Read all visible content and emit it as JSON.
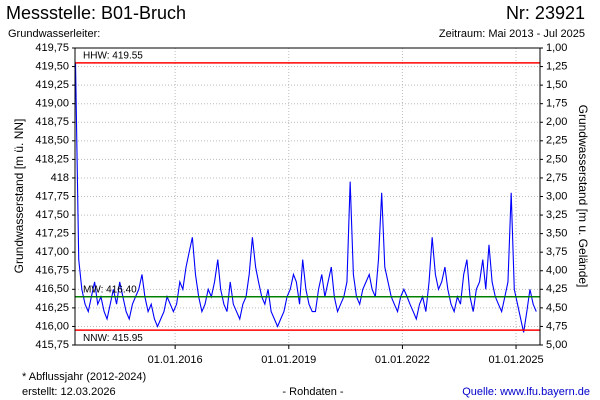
{
  "chart_data": {
    "type": "line",
    "title": "Messstelle: B01-Bruch",
    "number": "Nr: 23921",
    "subtitle_left": "Grundwasserleiter:",
    "subtitle_right": "Zeitraum: Mai 2013 - Jul 2025",
    "ylabel": "Grundwasserstand [m ü. NN]",
    "y2label": "Grundwasserstand [m u. Gelände]",
    "footnote": "* Abflussjahr (2012-2024)",
    "created": "erstellt:  12.03.2026",
    "status": "- Rohdaten -",
    "source": "Quelle: www.lfu.bayern.de",
    "grid": true,
    "xlim": [
      "2013-05-10",
      "2025-08-20"
    ],
    "xticks": [
      {
        "value": "2016-01-01",
        "label": "01.01.2016"
      },
      {
        "value": "2019-01-01",
        "label": "01.01.2019"
      },
      {
        "value": "2022-01-01",
        "label": "01.01.2022"
      },
      {
        "value": "2025-01-01",
        "label": "01.01.2025"
      }
    ],
    "ylim": [
      415.75,
      419.75
    ],
    "yticks": [
      {
        "value": 415.75,
        "label": "415,75"
      },
      {
        "value": 416.0,
        "label": "416,00"
      },
      {
        "value": 416.25,
        "label": "416,25"
      },
      {
        "value": 416.5,
        "label": "416,50"
      },
      {
        "value": 416.75,
        "label": "416,75"
      },
      {
        "value": 417.0,
        "label": "417,00"
      },
      {
        "value": 417.25,
        "label": "417,25"
      },
      {
        "value": 417.5,
        "label": "417,50"
      },
      {
        "value": 417.75,
        "label": "417,75"
      },
      418,
      {
        "value": 418.25,
        "label": "418,25"
      },
      {
        "value": 418.5,
        "label": "418,50"
      },
      {
        "value": 418.75,
        "label": "418,75"
      },
      {
        "value": 419.0,
        "label": "419,00"
      },
      {
        "value": 419.25,
        "label": "419,25"
      },
      {
        "value": 419.5,
        "label": "419,50"
      },
      {
        "value": 419.75,
        "label": "419,75"
      }
    ],
    "y2lim": [
      5,
      1
    ],
    "y2ticks": [
      {
        "value": 1.0,
        "label": "1,00"
      },
      {
        "value": 1.25,
        "label": "1,25"
      },
      {
        "value": 1.5,
        "label": "1,50"
      },
      {
        "value": 1.75,
        "label": "1,75"
      },
      {
        "value": 2.0,
        "label": "2,00"
      },
      {
        "value": 2.25,
        "label": "2,25"
      },
      {
        "value": 2.5,
        "label": "2,50"
      },
      {
        "value": 2.75,
        "label": "2,75"
      },
      {
        "value": 3.0,
        "label": "3,00"
      },
      {
        "value": 3.25,
        "label": "3,25"
      },
      {
        "value": 3.5,
        "label": "3,50"
      },
      {
        "value": 3.75,
        "label": "3,75"
      },
      {
        "value": 4.0,
        "label": "4,00"
      },
      {
        "value": 4.25,
        "label": "4,25"
      },
      {
        "value": 4.5,
        "label": "4,50"
      },
      {
        "value": 4.75,
        "label": "4,75"
      },
      {
        "value": 5.0,
        "label": "5,00"
      }
    ],
    "annotations": [
      {
        "label": "HHW: 419.55",
        "value": 419.55,
        "color": "#ff0000"
      },
      {
        "label": "MW: 416.40",
        "value": 416.4,
        "color": "#008000"
      },
      {
        "label": "NNW: 415.95",
        "value": 415.95,
        "color": "#ff0000"
      }
    ],
    "x": [
      "2013-05-15",
      "2013-06-15",
      "2013-07-15",
      "2013-08-15",
      "2013-09-15",
      "2013-10-15",
      "2013-11-15",
      "2013-12-15",
      "2014-01-15",
      "2014-02-15",
      "2014-03-15",
      "2014-04-15",
      "2014-05-15",
      "2014-06-15",
      "2014-07-15",
      "2014-08-15",
      "2014-09-15",
      "2014-10-15",
      "2014-11-15",
      "2014-12-15",
      "2015-01-15",
      "2015-02-15",
      "2015-03-15",
      "2015-04-15",
      "2015-05-15",
      "2015-06-15",
      "2015-07-15",
      "2015-08-15",
      "2015-09-15",
      "2015-10-15",
      "2015-11-15",
      "2015-12-15",
      "2016-01-15",
      "2016-02-15",
      "2016-03-15",
      "2016-04-15",
      "2016-05-15",
      "2016-06-15",
      "2016-07-15",
      "2016-08-15",
      "2016-09-15",
      "2016-10-15",
      "2016-11-15",
      "2016-12-15",
      "2017-01-15",
      "2017-02-15",
      "2017-03-15",
      "2017-04-15",
      "2017-05-15",
      "2017-06-15",
      "2017-07-15",
      "2017-08-15",
      "2017-09-15",
      "2017-10-15",
      "2017-11-15",
      "2017-12-15",
      "2018-01-15",
      "2018-02-15",
      "2018-03-15",
      "2018-04-15",
      "2018-05-15",
      "2018-06-15",
      "2018-07-15",
      "2018-08-15",
      "2018-09-15",
      "2018-10-15",
      "2018-11-15",
      "2018-12-15",
      "2019-01-15",
      "2019-02-15",
      "2019-03-15",
      "2019-04-15",
      "2019-05-15",
      "2019-06-15",
      "2019-07-15",
      "2019-08-15",
      "2019-09-15",
      "2019-10-15",
      "2019-11-15",
      "2019-12-15",
      "2020-01-15",
      "2020-02-15",
      "2020-03-15",
      "2020-04-15",
      "2020-05-15",
      "2020-06-15",
      "2020-07-15",
      "2020-08-15",
      "2020-09-15",
      "2020-10-15",
      "2020-11-15",
      "2020-12-15",
      "2021-01-15",
      "2021-02-15",
      "2021-03-15",
      "2021-04-15",
      "2021-05-15",
      "2021-06-15",
      "2021-07-15",
      "2021-08-15",
      "2021-09-15",
      "2021-10-15",
      "2021-11-15",
      "2021-12-15",
      "2022-01-15",
      "2022-02-15",
      "2022-03-15",
      "2022-04-15",
      "2022-05-15",
      "2022-06-15",
      "2022-07-15",
      "2022-08-15",
      "2022-09-15",
      "2022-10-15",
      "2022-11-15",
      "2022-12-15",
      "2023-01-15",
      "2023-02-15",
      "2023-03-15",
      "2023-04-15",
      "2023-05-15",
      "2023-06-15",
      "2023-07-15",
      "2023-08-15",
      "2023-09-15",
      "2023-10-15",
      "2023-11-15",
      "2023-12-15",
      "2024-01-15",
      "2024-02-15",
      "2024-03-15",
      "2024-04-15",
      "2024-05-15",
      "2024-06-15",
      "2024-07-15",
      "2024-08-15",
      "2024-09-15",
      "2024-10-15",
      "2024-11-15",
      "2024-12-15",
      "2025-01-15",
      "2025-02-15",
      "2025-03-15",
      "2025-04-15",
      "2025-05-15",
      "2025-06-15",
      "2025-07-15"
    ],
    "series": [
      {
        "color": "#0000ff",
        "values": [
          419.55,
          416.9,
          416.5,
          416.3,
          416.2,
          416.4,
          416.6,
          416.3,
          416.4,
          416.2,
          416.1,
          416.3,
          416.5,
          416.3,
          416.6,
          416.4,
          416.2,
          416.1,
          416.3,
          416.4,
          416.5,
          416.7,
          416.4,
          416.2,
          416.3,
          416.1,
          416.0,
          416.1,
          416.2,
          416.4,
          416.3,
          416.2,
          416.3,
          416.6,
          416.5,
          416.8,
          417.0,
          417.2,
          416.7,
          416.4,
          416.2,
          416.3,
          416.5,
          416.4,
          416.6,
          416.9,
          416.5,
          416.3,
          416.2,
          416.6,
          416.3,
          416.2,
          416.1,
          416.3,
          416.4,
          416.7,
          417.2,
          416.8,
          416.6,
          416.4,
          416.3,
          416.5,
          416.2,
          416.1,
          416.0,
          416.1,
          416.2,
          416.4,
          416.5,
          416.7,
          416.6,
          416.3,
          416.9,
          416.5,
          416.3,
          416.2,
          416.2,
          416.5,
          416.7,
          416.4,
          416.6,
          416.8,
          416.4,
          416.2,
          416.3,
          416.4,
          416.6,
          417.95,
          416.7,
          416.4,
          416.3,
          416.5,
          416.6,
          416.7,
          416.5,
          416.4,
          416.9,
          417.8,
          416.8,
          416.6,
          416.4,
          416.3,
          416.2,
          416.4,
          416.5,
          416.4,
          416.3,
          416.2,
          416.1,
          416.3,
          416.4,
          416.2,
          416.6,
          417.2,
          416.7,
          416.5,
          416.6,
          416.8,
          416.5,
          416.3,
          416.2,
          416.4,
          416.3,
          416.7,
          416.9,
          416.4,
          416.2,
          416.5,
          416.6,
          416.9,
          416.5,
          417.1,
          416.6,
          416.4,
          416.3,
          416.2,
          416.4,
          416.6,
          417.8,
          416.5,
          416.3,
          416.1,
          415.92,
          416.2,
          416.5,
          416.3,
          416.2
        ]
      }
    ]
  }
}
